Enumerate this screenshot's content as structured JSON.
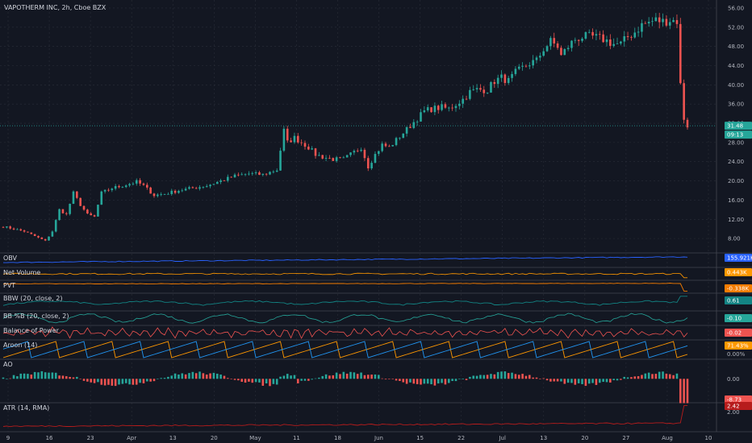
{
  "header": {
    "title": "VAPOTHERM INC, 2h, Cboe BZX"
  },
  "colors": {
    "background": "#131722",
    "grid": "#2a2e39",
    "separator": "#434651",
    "up": "#26a69a",
    "down": "#ef5350",
    "price_line": "#26a69a",
    "obv": "#2962ff",
    "net_volume": "#ff9800",
    "pvt": "#f57c00",
    "bbw": "#138484",
    "bbpb": "#26a69a",
    "bop": "#ef5350",
    "aroon_up": "#ff9800",
    "aroon_down": "#2196f3",
    "ao_up": "#26a69a",
    "ao_down": "#ef5350",
    "atr": "#b71c1c"
  },
  "chart_data": {
    "type": "candlestick",
    "title": "VAPOTHERM INC, 2h, Cboe BZX",
    "ylim": [
      5.0,
      57.0
    ],
    "y_ticks": [
      "56.00",
      "52.00",
      "48.00",
      "44.00",
      "40.00",
      "36.00",
      "32.00",
      "28.00",
      "24.00",
      "20.00",
      "16.00",
      "12.00",
      "8.00"
    ],
    "x_ticks": [
      "9",
      "16",
      "23",
      "Apr",
      "13",
      "20",
      "May",
      "11",
      "18",
      "Jun",
      "15",
      "22",
      "Jul",
      "13",
      "20",
      "27",
      "Aug",
      "10"
    ],
    "price_path": [
      [
        0,
        10.5
      ],
      [
        6,
        9.5
      ],
      [
        9,
        8.5
      ],
      [
        12,
        7.5
      ],
      [
        14,
        9.5
      ],
      [
        16,
        14
      ],
      [
        18,
        13
      ],
      [
        20,
        17.5
      ],
      [
        22,
        15
      ],
      [
        24,
        13
      ],
      [
        26,
        12.5
      ],
      [
        28,
        17.5
      ],
      [
        31,
        18.5
      ],
      [
        34,
        19
      ],
      [
        38,
        19.8
      ],
      [
        40,
        19
      ],
      [
        43,
        17
      ],
      [
        46,
        17.3
      ],
      [
        50,
        18
      ],
      [
        54,
        18.5
      ],
      [
        58,
        19
      ],
      [
        62,
        20
      ],
      [
        66,
        21
      ],
      [
        70,
        21.5
      ],
      [
        74,
        21.3
      ],
      [
        78,
        22.3
      ],
      [
        80,
        30.5
      ],
      [
        81,
        28
      ],
      [
        83,
        29
      ],
      [
        85,
        28
      ],
      [
        87,
        27
      ],
      [
        89,
        25.5
      ],
      [
        91,
        25
      ],
      [
        94,
        24.5
      ],
      [
        97,
        24.5
      ],
      [
        100,
        26
      ],
      [
        102,
        27
      ],
      [
        104,
        23
      ],
      [
        106,
        25.5
      ],
      [
        108,
        27.5
      ],
      [
        110,
        27
      ],
      [
        112,
        28.5
      ],
      [
        114,
        30
      ],
      [
        116,
        31.5
      ],
      [
        118,
        33
      ],
      [
        120,
        34.5
      ],
      [
        122,
        35
      ],
      [
        125,
        35.3
      ],
      [
        127,
        35
      ],
      [
        129,
        36
      ],
      [
        131,
        37
      ],
      [
        133,
        38.5
      ],
      [
        135,
        39
      ],
      [
        138,
        39
      ],
      [
        140,
        40.8
      ],
      [
        142,
        41.5
      ],
      [
        144,
        40.8
      ],
      [
        146,
        42.5
      ],
      [
        148,
        43.5
      ],
      [
        150,
        44.5
      ],
      [
        152,
        45
      ],
      [
        154,
        47.5
      ],
      [
        156,
        49
      ],
      [
        158,
        48
      ],
      [
        159,
        46
      ],
      [
        161,
        48
      ],
      [
        163,
        49.5
      ],
      [
        165,
        50
      ],
      [
        168,
        50
      ],
      [
        171,
        49.5
      ],
      [
        174,
        48.5
      ],
      [
        176,
        48.5
      ],
      [
        178,
        50
      ],
      [
        180,
        51
      ],
      [
        182,
        52.5
      ],
      [
        184,
        53
      ],
      [
        186,
        53.5
      ],
      [
        188,
        53.2
      ],
      [
        190,
        53.5
      ],
      [
        192,
        53.3
      ],
      [
        193,
        40
      ],
      [
        194,
        33
      ],
      [
        195,
        31.48
      ]
    ],
    "last_price": "31.48",
    "countdown": "09:13",
    "indicators": [
      {
        "name": "OBV",
        "value": "155.921K"
      },
      {
        "name": "Net Volume",
        "value": "0.443K"
      },
      {
        "name": "PVT",
        "value": "-0.338K"
      },
      {
        "name": "BBW (20, close, 2)",
        "value": "0.61"
      },
      {
        "name": "BB %B (20, close, 2)",
        "value": "-0.10"
      },
      {
        "name": "Balance of Power",
        "value": "-0.02"
      },
      {
        "name": "Aroon (14)",
        "value_up": "71.43%",
        "value_down": "0.00%"
      },
      {
        "name": "AO",
        "value": "0.00",
        "value_last": "-8.73"
      },
      {
        "name": "ATR (14, RMA)",
        "value": "2.42",
        "value_prev": "2.00"
      }
    ],
    "x_count": 196,
    "grid": true
  }
}
